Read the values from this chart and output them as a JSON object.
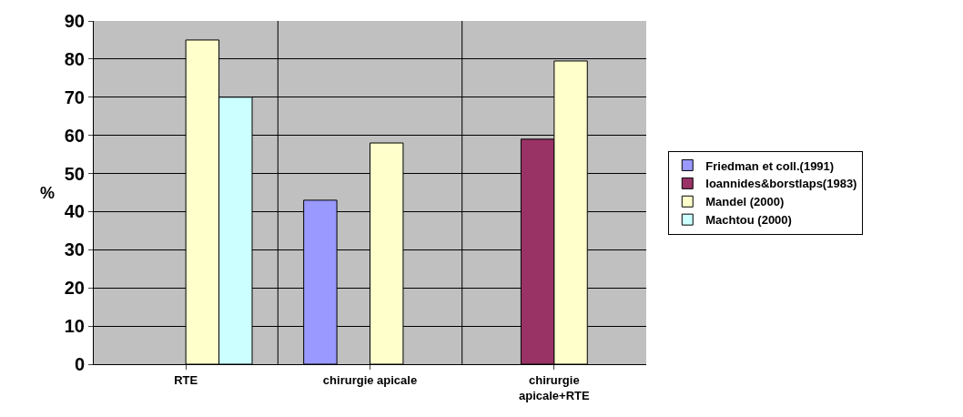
{
  "chart_data": {
    "type": "bar",
    "ylabel": "%",
    "categories": [
      "RTE",
      "chirurgie apicale",
      "chirurgie apicale+RTE"
    ],
    "series": [
      {
        "name": "Friedman et coll.(1991)",
        "color": "#9999ff",
        "values": [
          null,
          43,
          null
        ]
      },
      {
        "name": "Ioannides&borstlaps(1983)",
        "color": "#993366",
        "values": [
          null,
          null,
          59
        ]
      },
      {
        "name": "Mandel (2000)",
        "color": "#ffffcc",
        "values": [
          85,
          58,
          79.5
        ]
      },
      {
        "name": "Machtou (2000)",
        "color": "#ccffff",
        "values": [
          70,
          null,
          null
        ]
      }
    ],
    "ylim": [
      0,
      90
    ],
    "yticks": [
      0,
      10,
      20,
      30,
      40,
      50,
      60,
      70,
      80,
      90
    ],
    "grid": true,
    "legend": "right"
  }
}
